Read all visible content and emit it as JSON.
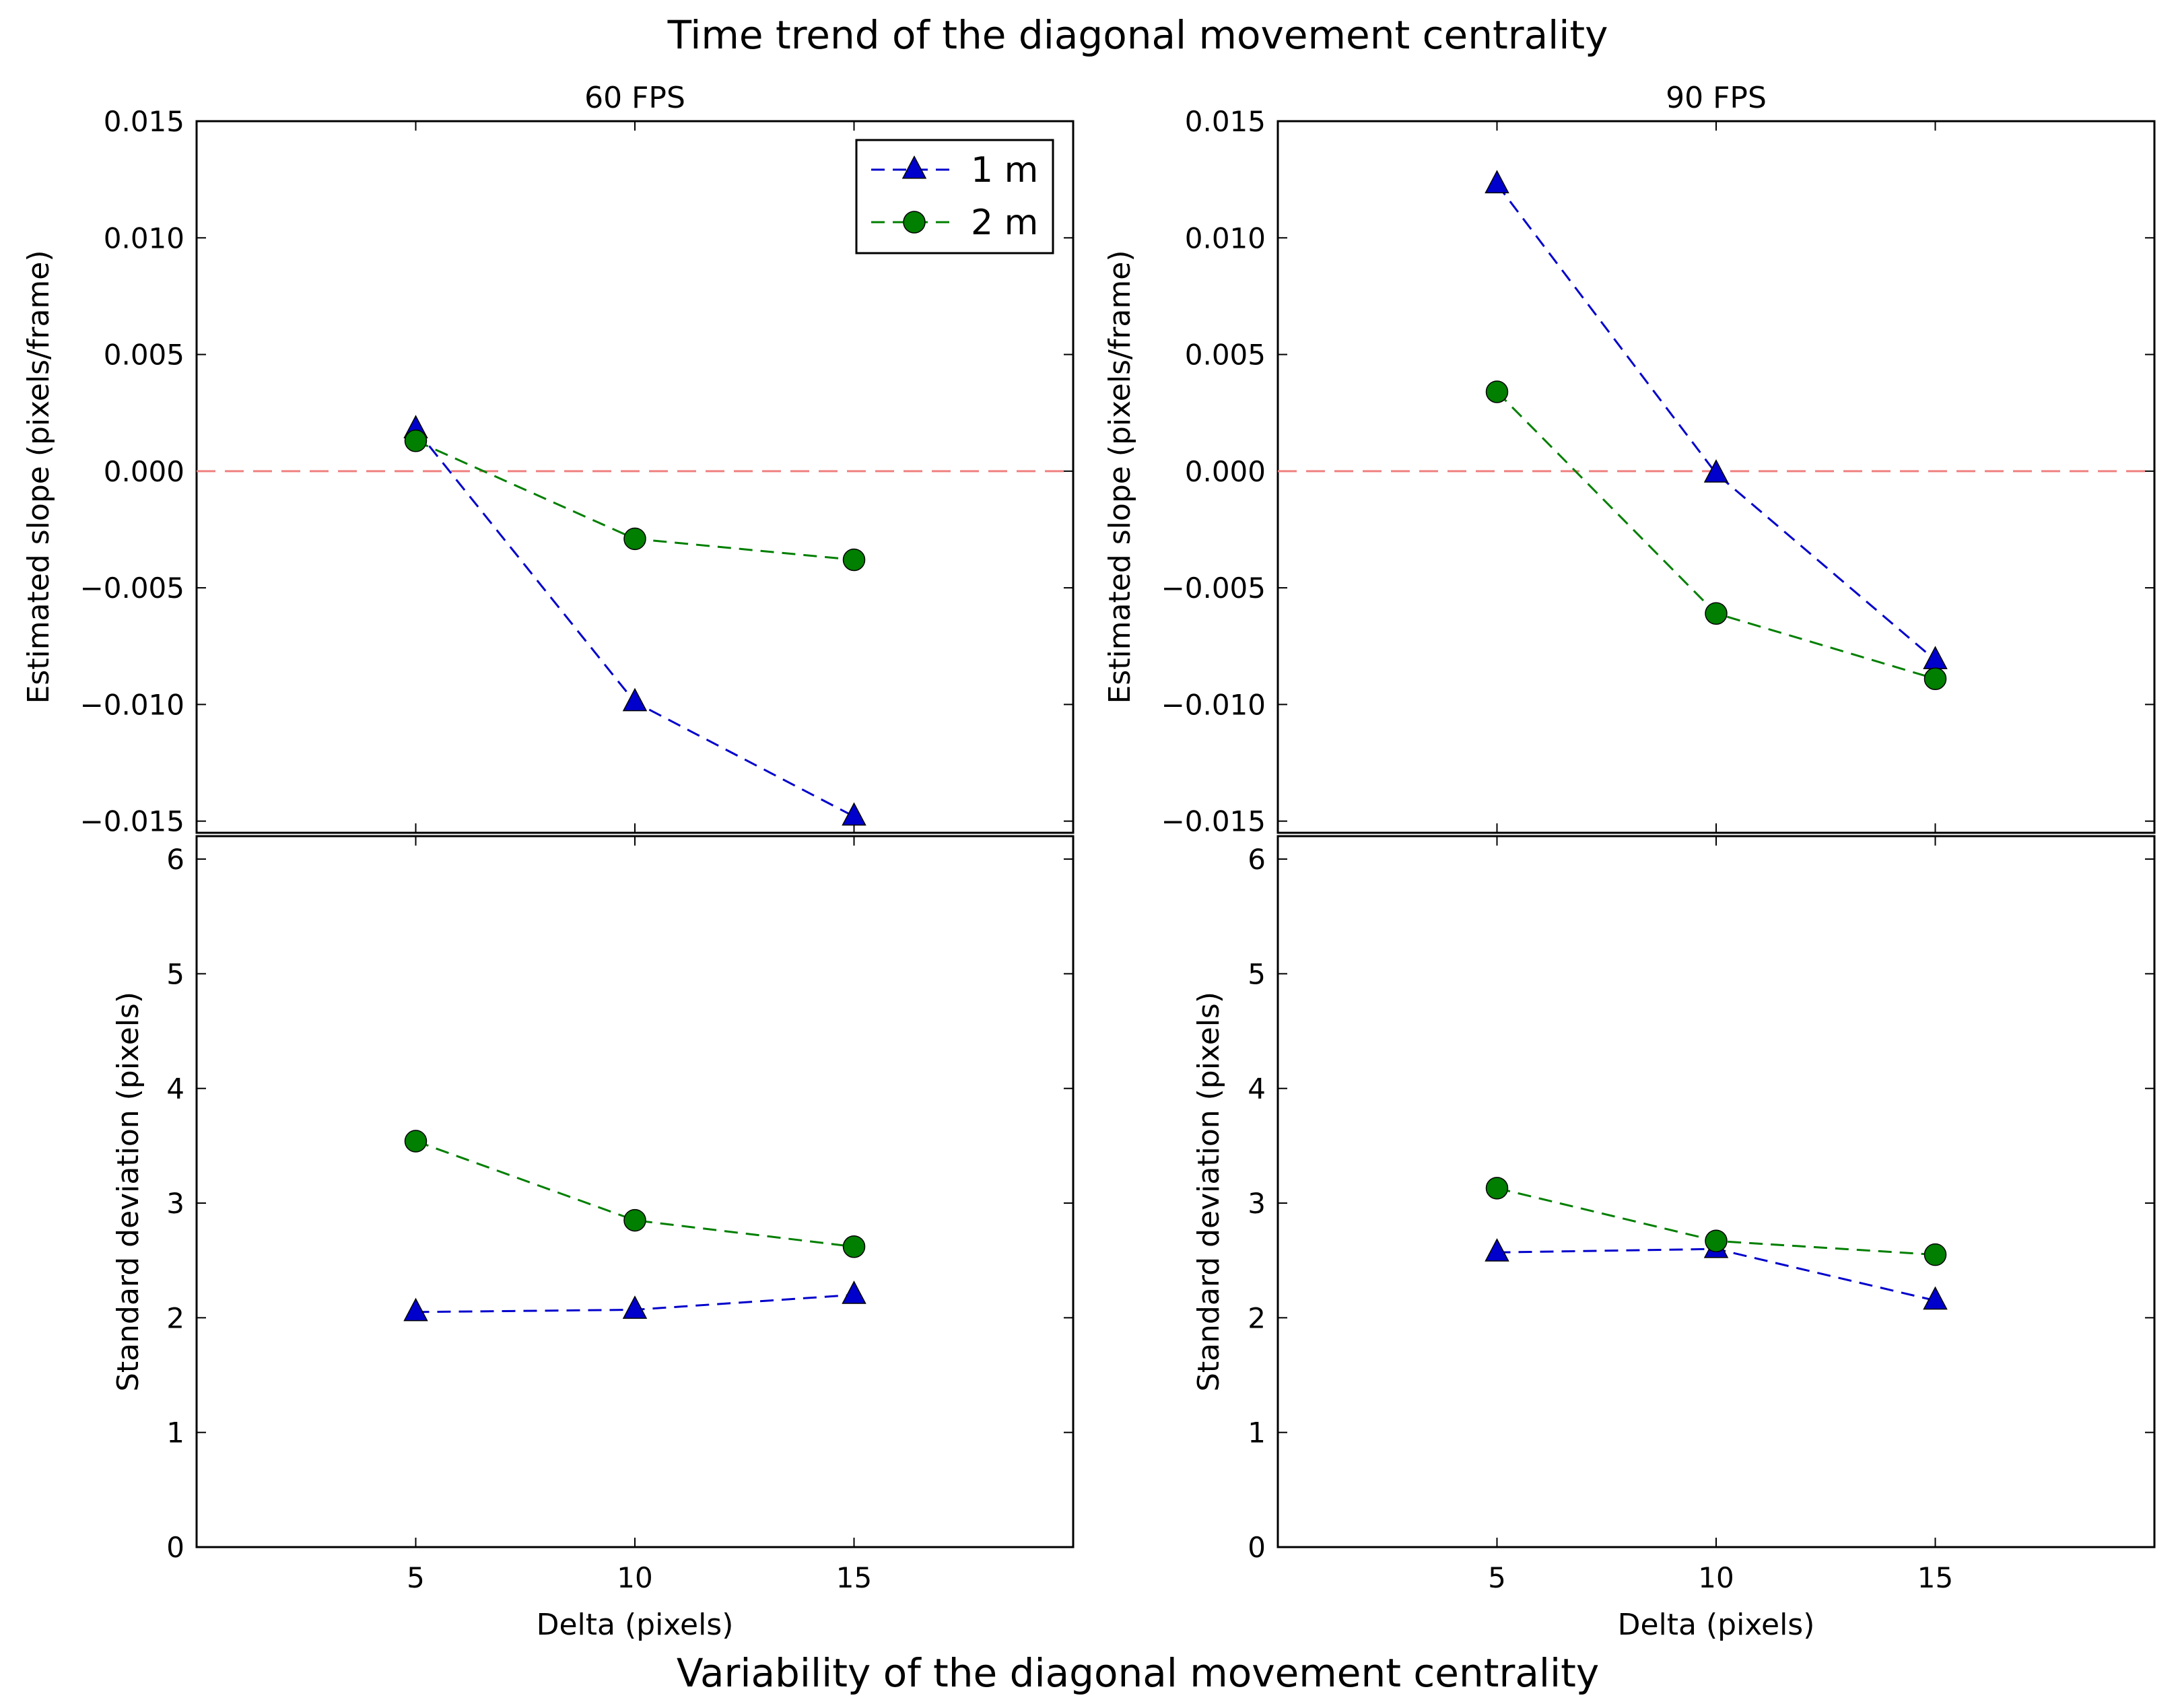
{
  "figure": {
    "top_title": "Time trend of the diagonal movement centrality",
    "bottom_title": "Variability of the diagonal movement centrality"
  },
  "colors": {
    "series_1m": "#0000cc",
    "series_2m": "#007f00",
    "zero_line": "#f08080"
  },
  "legend": {
    "placement": "upper-right of top-left panel",
    "entries": [
      "1 m",
      "2 m"
    ]
  },
  "chart_data": [
    {
      "type": "line",
      "panel": "slope-60fps",
      "title": "60 FPS",
      "xlabel": "",
      "ylabel": "Estimated slope (pixels/frame)",
      "x": [
        5,
        10,
        15
      ],
      "xlim": [
        0,
        20
      ],
      "ylim": [
        -0.0155,
        0.015
      ],
      "xticks": [
        5,
        10,
        15
      ],
      "xtick_labels": [
        "",
        "",
        ""
      ],
      "yticks": [
        -0.015,
        -0.01,
        -0.005,
        0.0,
        0.005,
        0.01,
        0.015
      ],
      "ytick_labels": [
        "−0.015",
        "−0.010",
        "−0.005",
        "0.000",
        "0.005",
        "0.010",
        "0.015"
      ],
      "reference_line": 0.0,
      "series": [
        {
          "name": "1 m",
          "marker": "triangle",
          "values": [
            0.0018,
            -0.0099,
            -0.0148
          ]
        },
        {
          "name": "2 m",
          "marker": "circle",
          "values": [
            0.0013,
            -0.0029,
            -0.0038
          ]
        }
      ]
    },
    {
      "type": "line",
      "panel": "slope-90fps",
      "title": "90 FPS",
      "xlabel": "",
      "ylabel": "Estimated slope (pixels/frame)",
      "x": [
        5,
        10,
        15
      ],
      "xlim": [
        0,
        20
      ],
      "ylim": [
        -0.0155,
        0.015
      ],
      "xticks": [
        5,
        10,
        15
      ],
      "xtick_labels": [
        "",
        "",
        ""
      ],
      "yticks": [
        -0.015,
        -0.01,
        -0.005,
        0.0,
        0.005,
        0.01,
        0.015
      ],
      "ytick_labels": [
        "−0.015",
        "−0.010",
        "−0.005",
        "0.000",
        "0.005",
        "0.010",
        "0.015"
      ],
      "reference_line": 0.0,
      "series": [
        {
          "name": "1 m",
          "marker": "triangle",
          "values": [
            0.0123,
            -0.0001,
            -0.0081
          ]
        },
        {
          "name": "2 m",
          "marker": "circle",
          "values": [
            0.0034,
            -0.0061,
            -0.0089
          ]
        }
      ]
    },
    {
      "type": "line",
      "panel": "std-60fps",
      "title": "",
      "xlabel": "Delta (pixels)",
      "ylabel": "Standard deviation (pixels)",
      "x": [
        5,
        10,
        15
      ],
      "xlim": [
        0,
        20
      ],
      "ylim": [
        0,
        6.2
      ],
      "xticks": [
        5,
        10,
        15
      ],
      "xtick_labels": [
        "5",
        "10",
        "15"
      ],
      "yticks": [
        0,
        1,
        2,
        3,
        4,
        5,
        6
      ],
      "ytick_labels": [
        "0",
        "1",
        "2",
        "3",
        "4",
        "5",
        "6"
      ],
      "series": [
        {
          "name": "1 m",
          "marker": "triangle",
          "values": [
            2.05,
            2.07,
            2.2
          ]
        },
        {
          "name": "2 m",
          "marker": "circle",
          "values": [
            3.54,
            2.85,
            2.62
          ]
        }
      ]
    },
    {
      "type": "line",
      "panel": "std-90fps",
      "title": "",
      "xlabel": "Delta (pixels)",
      "ylabel": "Standard deviation (pixels)",
      "x": [
        5,
        10,
        15
      ],
      "xlim": [
        0,
        20
      ],
      "ylim": [
        0,
        6.2
      ],
      "xticks": [
        5,
        10,
        15
      ],
      "xtick_labels": [
        "5",
        "10",
        "15"
      ],
      "yticks": [
        0,
        1,
        2,
        3,
        4,
        5,
        6
      ],
      "ytick_labels": [
        "0",
        "1",
        "2",
        "3",
        "4",
        "5",
        "6"
      ],
      "series": [
        {
          "name": "1 m",
          "marker": "triangle",
          "values": [
            2.57,
            2.6,
            2.15
          ]
        },
        {
          "name": "2 m",
          "marker": "circle",
          "values": [
            3.13,
            2.67,
            2.55
          ]
        }
      ]
    }
  ]
}
